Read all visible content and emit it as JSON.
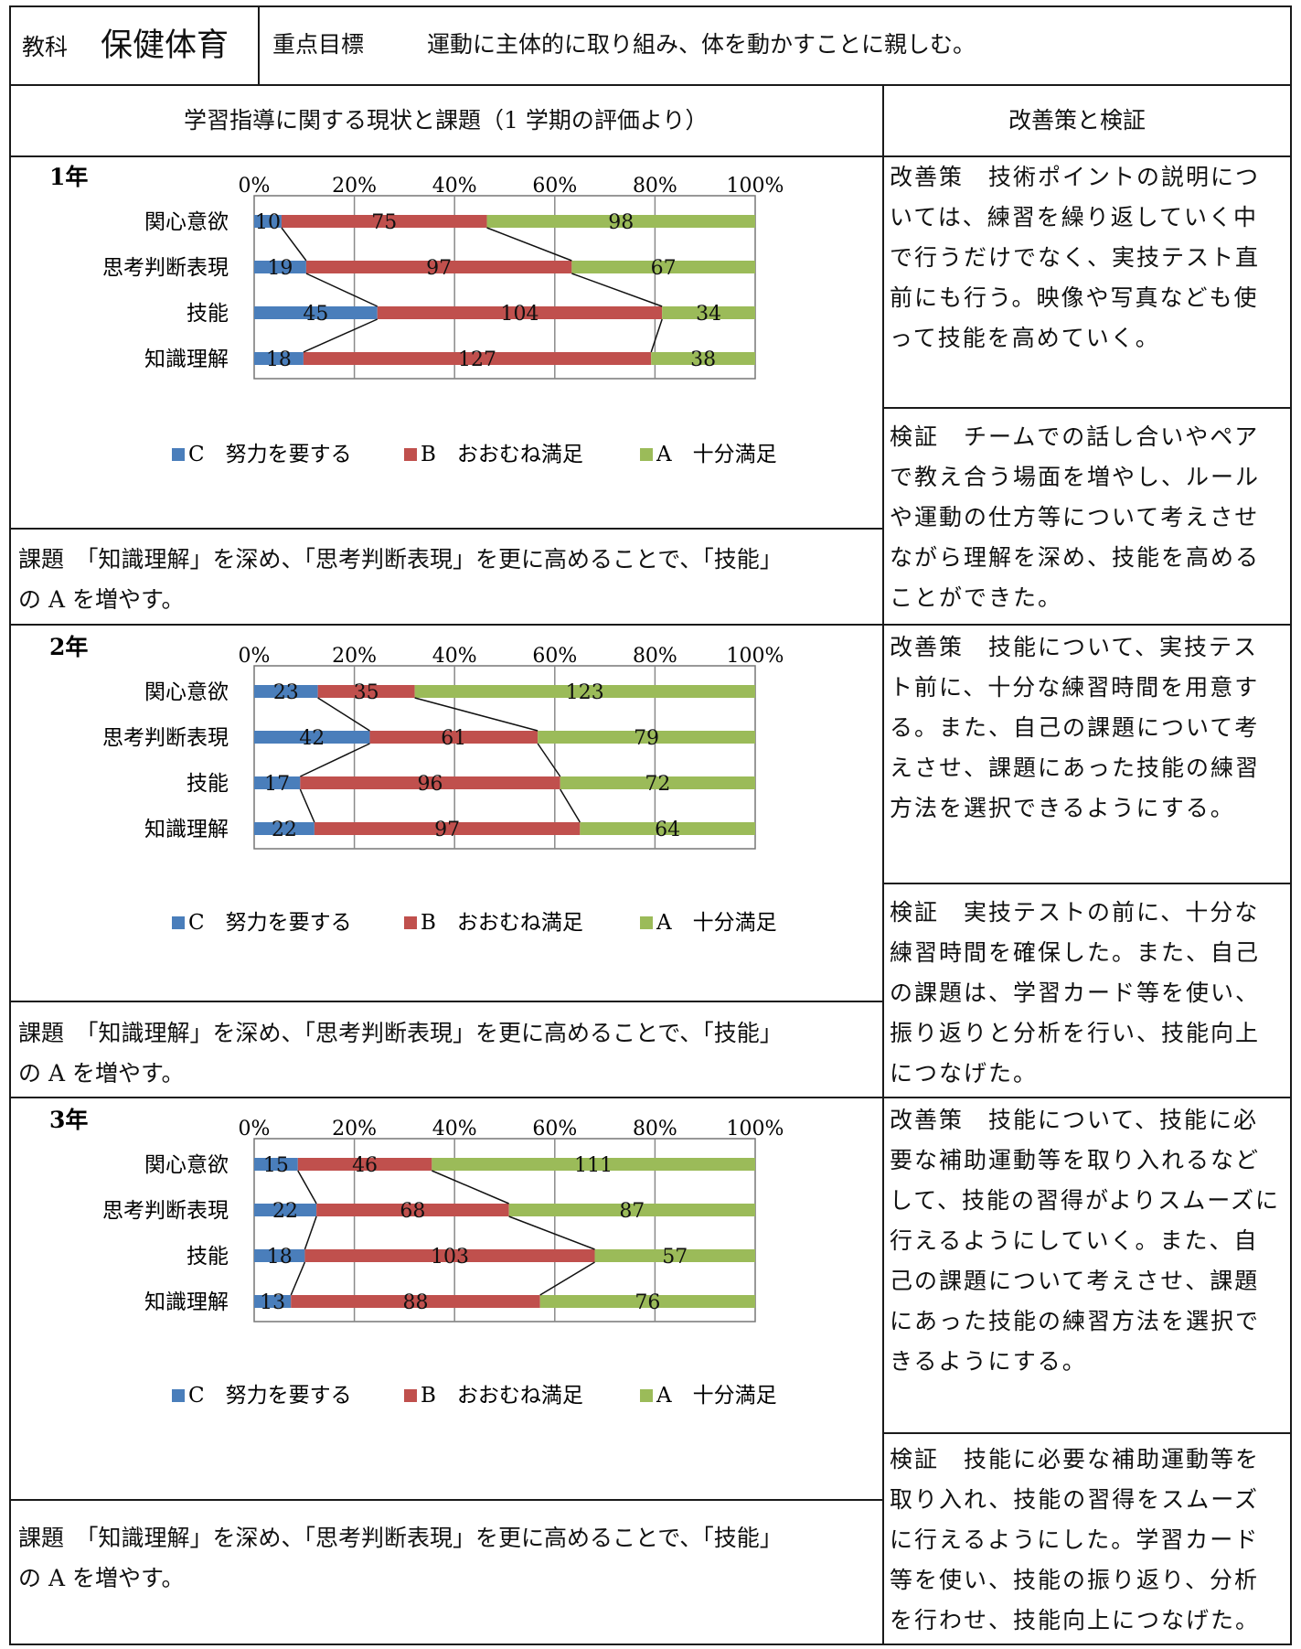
{
  "header": {
    "subject_label": "教科",
    "subject": "保健体育",
    "goal_label": "重点目標",
    "goal": "運動に主体的に取り組み、体を動かすことに親しむ。"
  },
  "columns": {
    "left": "学習指導に関する現状と課題（1 学期の評価より）",
    "right": "改善策と検証"
  },
  "axis_ticks": [
    "0%",
    "20%",
    "40%",
    "60%",
    "80%",
    "100%"
  ],
  "legend": [
    "C　努力を要する",
    "B　おおむね満足",
    "A　十分満足"
  ],
  "colors": {
    "C": "#4a7ebb",
    "B": "#c0504d",
    "A": "#9bbb59"
  },
  "sections": [
    {
      "grade": "1年",
      "kadai": [
        "課題　「知識理解」を深め、「思考判断表現」を更に高めることで、「技能」",
        "の A を増やす。"
      ],
      "kaizen": "改善策　技術ポイントの説明については、練習を繰り返していく中で行うだけでなく、実技テスト直前にも行う。映像や写真なども使って技能を高めていく。",
      "kensho": "検証　チームでの話し合いやペアで教え合う場面を増やし、ルールや運動の仕方等について考えさせながら理解を深め、技能を高めることができた。"
    },
    {
      "grade": "2年",
      "kadai": [
        "課題　「知識理解」を深め、「思考判断表現」を更に高めることで、「技能」",
        "の A を増やす。"
      ],
      "kaizen": "改善策　技能について、実技テスト前に、十分な練習時間を用意する。また、自己の課題について考えさせ、課題にあった技能の練習方法を選択できるようにする。",
      "kensho": "検証　実技テストの前に、十分な練習時間を確保した。また、自己の課題は、学習カード等を使い、振り返りと分析を行い、技能向上につなげた。"
    },
    {
      "grade": "3年",
      "kadai": [
        "課題　「知識理解」を深め、「思考判断表現」を更に高めることで、「技能」",
        "の A を増やす。"
      ],
      "kaizen": "改善策　技能について、技能に必要な補助運動等を取り入れるなどして、技能の習得がよりスムーズに行えるようにしていく。また、自己の課題について考えさせ、課題にあった技能の練習方法を選択できるようにする。",
      "kensho": "検証　技能に必要な補助運動等を取り入れ、技能の習得をスムーズに行えるようにした。学習カード等を使い、技能の振り返り、分析を行わせ、技能向上につなげた。"
    }
  ],
  "chart_data": [
    {
      "type": "bar",
      "stacked": "percent",
      "orientation": "horizontal",
      "title": "1年",
      "categories": [
        "関心意欲",
        "思考判断表現",
        "技能",
        "知識理解"
      ],
      "series": [
        {
          "name": "C　努力を要する",
          "values": [
            10,
            19,
            45,
            18
          ]
        },
        {
          "name": "B　おおむね満足",
          "values": [
            75,
            97,
            104,
            127
          ]
        },
        {
          "name": "A　十分満足",
          "values": [
            98,
            67,
            34,
            38
          ]
        }
      ],
      "xlim": [
        0,
        100
      ],
      "legend": "bottom"
    },
    {
      "type": "bar",
      "stacked": "percent",
      "orientation": "horizontal",
      "title": "2年",
      "categories": [
        "関心意欲",
        "思考判断表現",
        "技能",
        "知識理解"
      ],
      "series": [
        {
          "name": "C　努力を要する",
          "values": [
            23,
            42,
            17,
            22
          ]
        },
        {
          "name": "B　おおむね満足",
          "values": [
            35,
            61,
            96,
            97
          ]
        },
        {
          "name": "A　十分満足",
          "values": [
            123,
            79,
            72,
            64
          ]
        }
      ],
      "xlim": [
        0,
        100
      ],
      "legend": "bottom"
    },
    {
      "type": "bar",
      "stacked": "percent",
      "orientation": "horizontal",
      "title": "3年",
      "categories": [
        "関心意欲",
        "思考判断表現",
        "技能",
        "知識理解"
      ],
      "series": [
        {
          "name": "C　努力を要する",
          "values": [
            15,
            22,
            18,
            13
          ]
        },
        {
          "name": "B　おおむね満足",
          "values": [
            46,
            68,
            103,
            88
          ]
        },
        {
          "name": "A　十分満足",
          "values": [
            111,
            87,
            57,
            76
          ]
        }
      ],
      "xlim": [
        0,
        100
      ],
      "legend": "bottom"
    }
  ]
}
